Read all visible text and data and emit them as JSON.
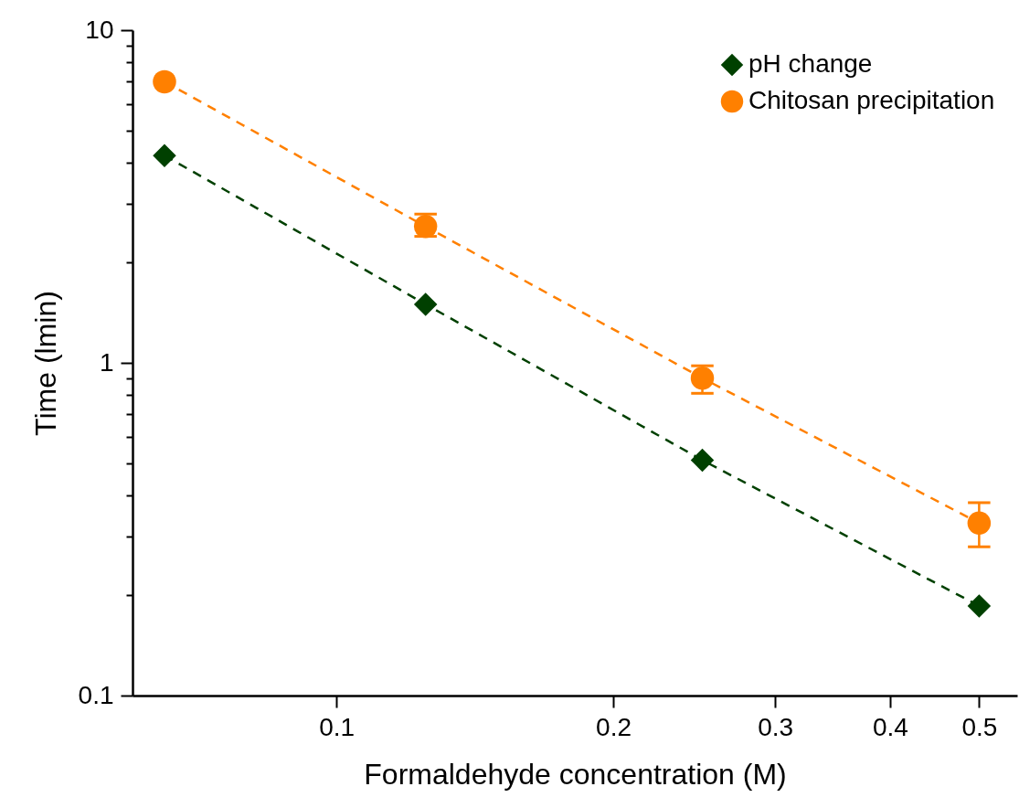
{
  "chart_data": {
    "type": "line",
    "xlabel": "Formaldehyde concentration (M)",
    "ylabel": "Time (lmin)",
    "x": [
      0.065,
      0.125,
      0.25,
      0.5
    ],
    "series": [
      {
        "name": "pH change",
        "color": "#004000",
        "marker": "diamond",
        "values": [
          4.2,
          1.5,
          0.51,
          0.186
        ]
      },
      {
        "name": "Chitosan precipitation",
        "color": "#ff8000",
        "marker": "circle",
        "values": [
          7.0,
          2.57,
          0.9,
          0.33
        ],
        "errors": [
          null,
          [
            2.4,
            2.8
          ],
          [
            0.81,
            0.98
          ],
          [
            0.28,
            0.38
          ]
        ]
      }
    ],
    "log": "xy",
    "xlim": [
      0.06,
      0.55
    ],
    "ylim": [
      0.1,
      10
    ],
    "xticks": [
      0.1,
      0.2,
      0.3,
      0.4,
      0.5
    ],
    "yticks": [
      0.1,
      {
        "value": 0.2,
        "label": null
      },
      {
        "value": 0.3,
        "label": null
      },
      {
        "value": 0.4,
        "label": null
      },
      {
        "value": 0.5,
        "label": null
      },
      {
        "value": 0.6,
        "label": null
      },
      {
        "value": 0.7,
        "label": null
      },
      {
        "value": 0.8,
        "label": null
      },
      {
        "value": 0.9,
        "label": null
      },
      1,
      {
        "value": 2,
        "label": null
      },
      {
        "value": 3,
        "label": null
      },
      {
        "value": 4,
        "label": null
      },
      {
        "value": 5,
        "label": null
      },
      {
        "value": 6,
        "label": null
      },
      {
        "value": 7,
        "label": null
      },
      {
        "value": 8,
        "label": null
      },
      {
        "value": 9,
        "label": null
      },
      10
    ],
    "grid": false,
    "legend": "top right",
    "line_style": "dashed"
  }
}
